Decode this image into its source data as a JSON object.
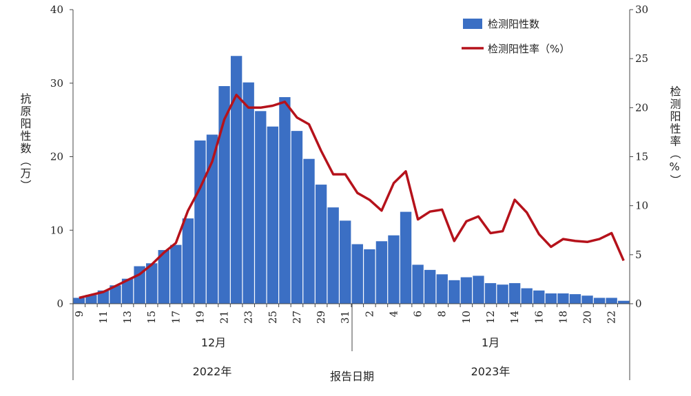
{
  "chart_data": {
    "type": "bar",
    "xlabel": "报告日期",
    "ylabel": "抗原阳性数（万）",
    "y2label": "检测阳性率（%）",
    "ylim": [
      0,
      40
    ],
    "y2lim": [
      0,
      30
    ],
    "yticks": [
      "0",
      "10",
      "20",
      "30",
      "40"
    ],
    "y2ticks": [
      "0",
      "5",
      "10",
      "15",
      "20",
      "25",
      "30"
    ],
    "categories": [
      "9",
      "10",
      "11",
      "12",
      "13",
      "14",
      "15",
      "16",
      "17",
      "18",
      "19",
      "20",
      "21",
      "22",
      "23",
      "24",
      "25",
      "26",
      "27",
      "28",
      "29",
      "30",
      "31",
      "1",
      "2",
      "3",
      "4",
      "5",
      "6",
      "7",
      "8",
      "9",
      "10",
      "11",
      "12",
      "13",
      "14",
      "15",
      "16",
      "17",
      "18",
      "19",
      "20",
      "21",
      "22",
      "23"
    ],
    "xticklabels": [
      "9",
      "11",
      "13",
      "15",
      "17",
      "19",
      "21",
      "23",
      "25",
      "27",
      "29",
      "31",
      "2",
      "4",
      "6",
      "8",
      "10",
      "12",
      "14",
      "16",
      "18",
      "20",
      "22"
    ],
    "month_labels": [
      "12月",
      "1月"
    ],
    "year_labels": [
      "2022年",
      "2023年"
    ],
    "legend_position": "top-right",
    "series": [
      {
        "name": "检测阳性数",
        "type": "bar",
        "axis": "left",
        "color": "#3b6fc4",
        "values": [
          0.8,
          1.2,
          1.8,
          2.5,
          3.4,
          5.1,
          5.5,
          7.3,
          8.0,
          11.6,
          22.2,
          23.0,
          29.6,
          33.7,
          30.1,
          26.2,
          24.1,
          28.1,
          23.5,
          19.7,
          16.2,
          13.1,
          11.3,
          8.1,
          7.4,
          8.5,
          9.3,
          12.5,
          5.3,
          4.6,
          4.0,
          3.2,
          3.6,
          3.8,
          2.8,
          2.6,
          2.8,
          2.1,
          1.8,
          1.4,
          1.4,
          1.3,
          1.1,
          0.8,
          0.8,
          0.4
        ]
      },
      {
        "name": "检测阳性率（%）",
        "type": "line",
        "axis": "right",
        "color": "#b5121b",
        "values": [
          0.6,
          0.9,
          1.2,
          1.8,
          2.4,
          3.0,
          4.0,
          5.2,
          6.2,
          9.5,
          11.8,
          14.5,
          18.8,
          21.3,
          20.0,
          20.0,
          20.2,
          20.6,
          19.0,
          18.3,
          15.6,
          13.2,
          13.2,
          11.3,
          10.6,
          9.5,
          12.3,
          13.5,
          8.6,
          9.4,
          9.6,
          6.4,
          8.4,
          8.9,
          7.2,
          7.4,
          10.6,
          9.3,
          7.1,
          5.8,
          6.6,
          6.4,
          6.3,
          6.6,
          7.2,
          4.4
        ]
      }
    ]
  }
}
